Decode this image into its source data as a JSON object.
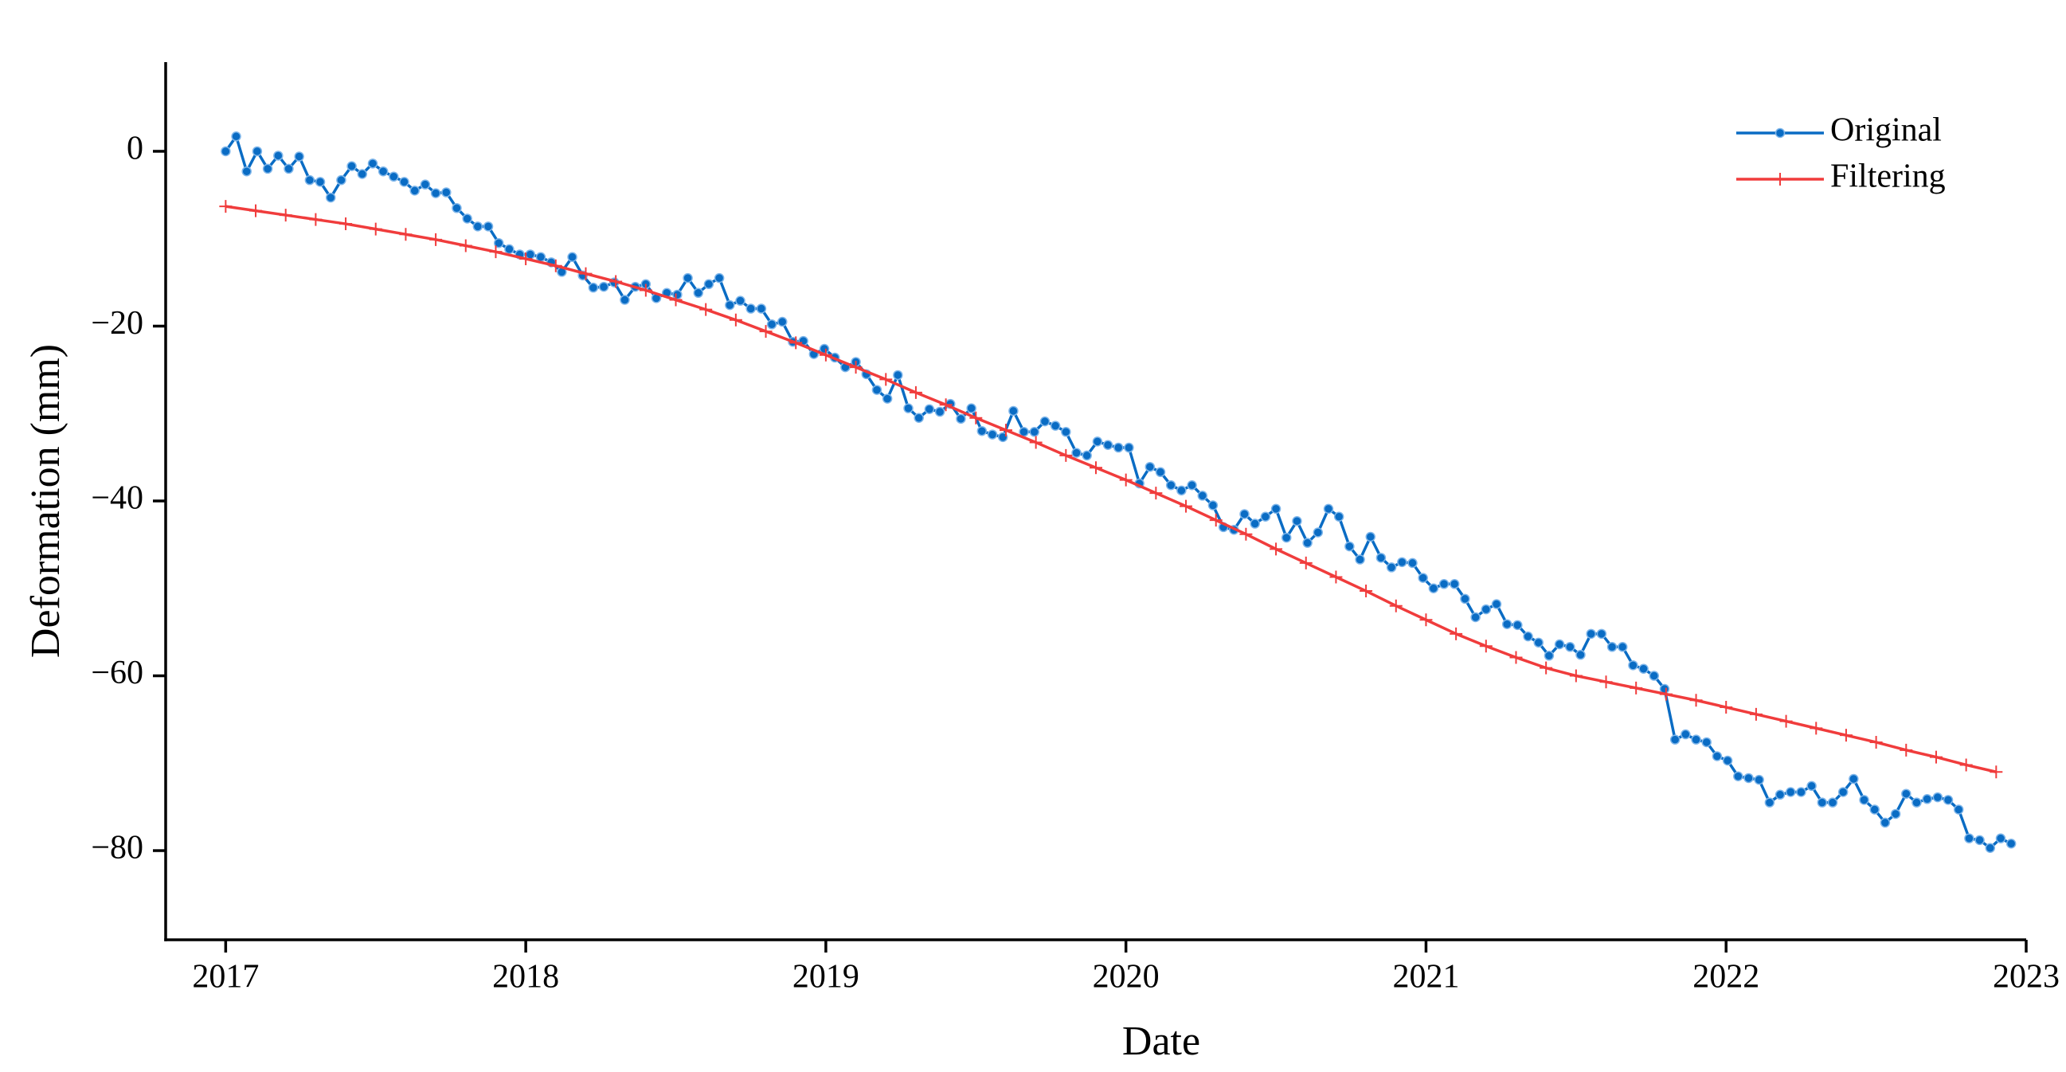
{
  "chart_data": {
    "type": "line",
    "xlabel": "Date",
    "ylabel": "Deformation (mm)",
    "xlim": [
      2016.8,
      2023
    ],
    "xticks": [
      2017,
      2018,
      2019,
      2020,
      2021,
      2022,
      2023
    ],
    "ylim": [
      -90.2,
      10.2
    ],
    "yticks": [
      0,
      {
        "value": -20,
        "label": "−20"
      },
      {
        "value": -40,
        "label": "−40"
      },
      {
        "value": -60,
        "label": "−60"
      },
      {
        "value": -80,
        "label": "−80"
      }
    ],
    "legend": "upper right",
    "x": [
      2017,
      2017.035,
      2017.07,
      2017.105,
      2017.14,
      2017.175,
      2017.21,
      2017.245,
      2017.28,
      2017.315,
      2017.35,
      2017.385,
      2017.42,
      2017.455,
      2017.49,
      2017.525,
      2017.56,
      2017.595,
      2017.63,
      2017.665,
      2017.7,
      2017.735,
      2017.77,
      2017.805,
      2017.84,
      2017.875,
      2017.91,
      2017.945,
      2017.98,
      2018.015,
      2018.05,
      2018.085,
      2018.12,
      2018.155,
      2018.19,
      2018.225,
      2018.26,
      2018.295,
      2018.33,
      2018.365,
      2018.4,
      2018.435,
      2018.47,
      2018.505,
      2018.54,
      2018.575,
      2018.61,
      2018.645,
      2018.68,
      2018.715,
      2018.75,
      2018.785,
      2018.82,
      2018.855,
      2018.89,
      2018.925,
      2018.96,
      2018.995,
      2019.03,
      2019.065,
      2019.1,
      2019.135,
      2019.17,
      2019.205,
      2019.24,
      2019.275,
      2019.31,
      2019.345,
      2019.38,
      2019.415,
      2019.45,
      2019.485,
      2019.52,
      2019.555,
      2019.59,
      2019.625,
      2019.66,
      2019.695,
      2019.73,
      2019.765,
      2019.8,
      2019.835,
      2019.87,
      2019.905,
      2019.94,
      2019.975,
      2020.01,
      2020.045,
      2020.08,
      2020.115,
      2020.15,
      2020.185,
      2020.22,
      2020.255,
      2020.29,
      2020.325,
      2020.36,
      2020.395,
      2020.43,
      2020.465,
      2020.5,
      2020.535,
      2020.57,
      2020.605,
      2020.64,
      2020.675,
      2020.71,
      2020.745,
      2020.78,
      2020.815,
      2020.85,
      2020.885,
      2020.92,
      2020.955,
      2020.99,
      2021.025,
      2021.06,
      2021.095,
      2021.13,
      2021.165,
      2021.2,
      2021.235,
      2021.27,
      2021.305,
      2021.34,
      2021.375,
      2021.41,
      2021.445,
      2021.48,
      2021.515,
      2021.55,
      2021.585,
      2021.62,
      2021.655,
      2021.69,
      2021.725,
      2021.76,
      2021.795,
      2021.83,
      2021.865,
      2021.9,
      2021.935,
      2021.97,
      2022.005,
      2022.04,
      2022.075,
      2022.11,
      2022.145,
      2022.18,
      2022.215,
      2022.25,
      2022.285,
      2022.32,
      2022.355,
      2022.39,
      2022.425,
      2022.46,
      2022.495,
      2022.53,
      2022.565,
      2022.6,
      2022.635,
      2022.67,
      2022.705,
      2022.74,
      2022.775,
      2022.81,
      2022.845,
      2022.88,
      2022.915,
      2022.95
    ],
    "series": [
      {
        "name": "Original",
        "color": "#0a6cc4",
        "marker": "circle",
        "values": [
          0,
          1.7,
          -2.3,
          0,
          -2,
          -0.5,
          -2,
          -0.6,
          -3.3,
          -3.5,
          -5.3,
          -3.3,
          -1.7,
          -2.6,
          -1.4,
          -2.3,
          -2.9,
          -3.5,
          -4.5,
          -3.8,
          -4.8,
          -4.7,
          -6.5,
          -7.7,
          -8.6,
          -8.6,
          -10.5,
          -11.2,
          -11.8,
          -11.8,
          -12.1,
          -12.7,
          -13.8,
          -12.1,
          -14.2,
          -15.6,
          -15.5,
          -15,
          -17,
          -15.5,
          -15.2,
          -16.8,
          -16.2,
          -16.4,
          -14.5,
          -16.2,
          -15.2,
          -14.5,
          -17.6,
          -17.1,
          -18,
          -18,
          -19.8,
          -19.5,
          -21.8,
          -21.7,
          -23.2,
          -22.6,
          -23.6,
          -24.7,
          -24.1,
          -25.5,
          -27.3,
          -28.3,
          -25.6,
          -29.4,
          -30.5,
          -29.5,
          -29.8,
          -28.9,
          -30.6,
          -29.4,
          -32,
          -32.4,
          -32.7,
          -29.7,
          -32.1,
          -32.1,
          -30.9,
          -31.4,
          -32.1,
          -34.5,
          -34.8,
          -33.2,
          -33.6,
          -33.9,
          -33.9,
          -38,
          -36.1,
          -36.7,
          -38.2,
          -38.8,
          -38.2,
          -39.4,
          -40.5,
          -43,
          -43.3,
          -41.5,
          -42.6,
          -41.8,
          -40.9,
          -44.2,
          -42.3,
          -44.8,
          -43.6,
          -40.9,
          -41.8,
          -45.2,
          -46.7,
          -44.1,
          -46.5,
          -47.6,
          -47,
          -47.1,
          -48.8,
          -50,
          -49.5,
          -49.5,
          -51.2,
          -53.3,
          -52.4,
          -51.8,
          -54.1,
          -54.2,
          -55.5,
          -56.2,
          -57.7,
          -56.4,
          -56.7,
          -57.6,
          -55.2,
          -55.2,
          -56.7,
          -56.7,
          -58.8,
          -59.2,
          -60,
          -61.5,
          -67.3,
          -66.7,
          -67.3,
          -67.6,
          -69.2,
          -69.7,
          -71.5,
          -71.7,
          -71.9,
          -74.5,
          -73.6,
          -73.3,
          -73.3,
          -72.6,
          -74.5,
          -74.5,
          -73.3,
          -71.8,
          -74.2,
          -75.3,
          -76.8,
          -75.8,
          -73.5,
          -74.5,
          -74.1,
          -73.9,
          -74.2,
          -75.3,
          -78.6,
          -78.8,
          -79.7,
          -78.6,
          -79.2
        ]
      },
      {
        "name": "Filtering",
        "color": "#f03c3c",
        "marker": "plus",
        "x": [
          2017,
          2017.1,
          2017.2,
          2017.3,
          2017.4,
          2017.5,
          2017.6,
          2017.7,
          2017.8,
          2017.9,
          2018,
          2018.1,
          2018.2,
          2018.3,
          2018.4,
          2018.5,
          2018.6,
          2018.7,
          2018.8,
          2018.9,
          2019,
          2019.1,
          2019.2,
          2019.3,
          2019.4,
          2019.5,
          2019.6,
          2019.7,
          2019.8,
          2019.9,
          2020,
          2020.1,
          2020.2,
          2020.3,
          2020.4,
          2020.5,
          2020.6,
          2020.7,
          2020.8,
          2020.9,
          2021,
          2021.1,
          2021.2,
          2021.3,
          2021.4,
          2021.5,
          2021.6,
          2021.7,
          2021.8,
          2021.9,
          2022,
          2022.1,
          2022.2,
          2022.3,
          2022.4,
          2022.5,
          2022.6,
          2022.7,
          2022.8,
          2022.9
        ],
        "values": [
          -6.3,
          -6.8,
          -7.3,
          -7.8,
          -8.3,
          -8.9,
          -9.5,
          -10.1,
          -10.8,
          -11.5,
          -12.3,
          -13.1,
          -14,
          -14.9,
          -15.9,
          -17,
          -18.1,
          -19.3,
          -20.6,
          -21.9,
          -23.3,
          -24.7,
          -26.1,
          -27.6,
          -29,
          -30.5,
          -31.9,
          -33.3,
          -34.8,
          -36.2,
          -37.6,
          -39.1,
          -40.6,
          -42.2,
          -43.8,
          -45.5,
          -47.1,
          -48.7,
          -50.3,
          -52,
          -53.6,
          -55.2,
          -56.6,
          -57.9,
          -59.1,
          -60,
          -60.7,
          -61.4,
          -62.1,
          -62.8,
          -63.6,
          -64.4,
          -65.2,
          -66,
          -66.8,
          -67.6,
          -68.5,
          -69.3,
          -70.2,
          -71
        ]
      }
    ]
  }
}
